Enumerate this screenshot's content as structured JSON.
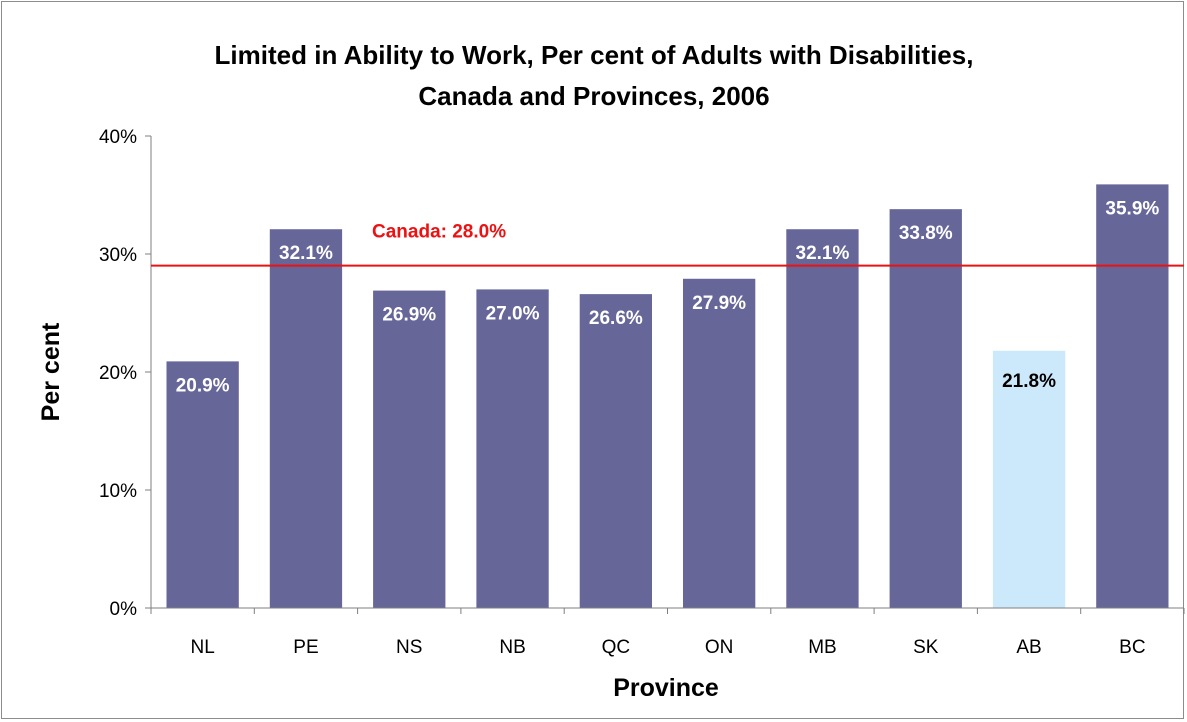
{
  "chart_data": {
    "type": "bar",
    "title": [
      "Limited in Ability to Work, Per cent of Adults with Disabilities,",
      "Canada and Provinces, 2006"
    ],
    "xlabel": "Province",
    "ylabel": "Per cent",
    "ylim": [
      0,
      40
    ],
    "yticks": [
      0,
      10,
      20,
      30,
      40
    ],
    "ytick_labels": [
      "0%",
      "10%",
      "20%",
      "30%",
      "40%"
    ],
    "grid": false,
    "legend": "none",
    "categories": [
      "NL",
      "PE",
      "NS",
      "NB",
      "QC",
      "ON",
      "MB",
      "SK",
      "AB",
      "BC"
    ],
    "values": [
      20.9,
      32.1,
      26.9,
      27.0,
      26.6,
      27.9,
      32.1,
      33.8,
      21.8,
      35.9
    ],
    "data_labels": [
      "20.9%",
      "32.1%",
      "26.9%",
      "27.0%",
      "26.6%",
      "27.9%",
      "32.1%",
      "33.8%",
      "21.8%",
      "35.9%"
    ],
    "highlight_index": 8,
    "reference_line": {
      "value": 28.0,
      "label": "Canada: 28.0%",
      "color": "#ee1111"
    },
    "colors": {
      "bar": "#666699",
      "highlight": "#cce9fb",
      "label_on_bar": "#ffffff",
      "label_on_highlight": "#000000",
      "axis": "#7f7f7f"
    }
  }
}
